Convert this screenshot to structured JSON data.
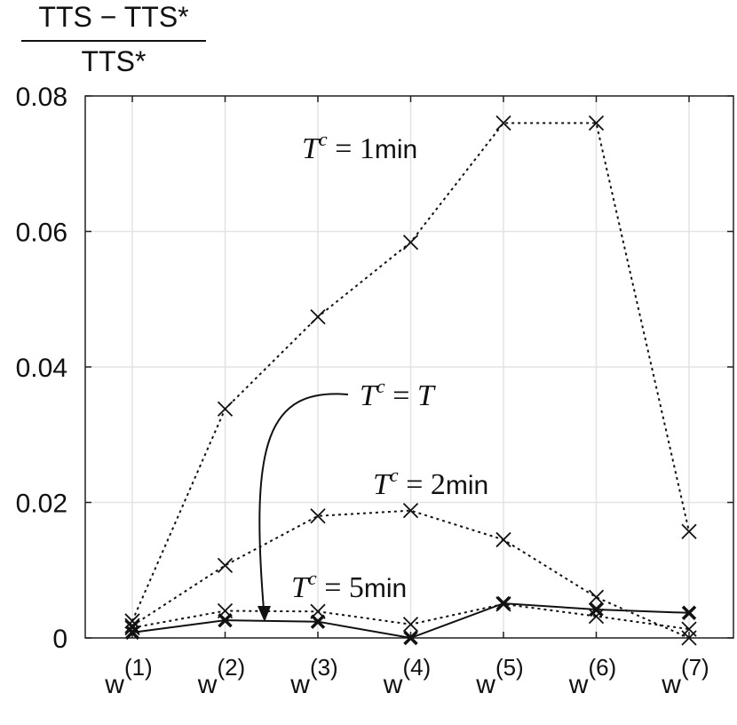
{
  "chart_data": {
    "type": "line",
    "ylabel": {
      "numerator": "TTS − TTS*",
      "denominator": "TTS*"
    },
    "categories": [
      "w(1)",
      "w(2)",
      "w(3)",
      "w(4)",
      "w(5)",
      "w(6)",
      "w(7)"
    ],
    "category_labels": [
      {
        "base": "w",
        "sup": "(1)"
      },
      {
        "base": "w",
        "sup": "(2)"
      },
      {
        "base": "w",
        "sup": "(3)"
      },
      {
        "base": "w",
        "sup": "(4)"
      },
      {
        "base": "w",
        "sup": "(5)"
      },
      {
        "base": "w",
        "sup": "(6)"
      },
      {
        "base": "w",
        "sup": "(7)"
      }
    ],
    "ylim": [
      0,
      0.08
    ],
    "yticks": [
      "0",
      "0.02",
      "0.04",
      "0.06",
      "0.08"
    ],
    "ytick_values": [
      0,
      0.02,
      0.04,
      0.06,
      0.08
    ],
    "grid": true,
    "series": [
      {
        "name": "T^c = 1min",
        "style": "dotted",
        "values": [
          0.0025,
          0.0338,
          0.0474,
          0.0584,
          0.076,
          0.076,
          0.0157
        ]
      },
      {
        "name": "T^c = 2min",
        "style": "dotted",
        "values": [
          0.0018,
          0.0107,
          0.018,
          0.0188,
          0.0145,
          0.006,
          0.0
        ]
      },
      {
        "name": "T^c = 5min",
        "style": "dotted",
        "values": [
          0.0015,
          0.004,
          0.0039,
          0.002,
          0.005,
          0.0032,
          0.0013
        ]
      },
      {
        "name": "T^c = T",
        "style": "solid",
        "values": [
          0.0008,
          0.0026,
          0.0024,
          0.0,
          0.0051,
          0.0042,
          0.0037
        ]
      }
    ],
    "annotations": [
      {
        "label": "T^c = 1min",
        "parts": [
          "T",
          "c",
          " = 1",
          "min"
        ]
      },
      {
        "label": "T^c = 2min",
        "parts": [
          "T",
          "c",
          " = 2",
          "min"
        ]
      },
      {
        "label": "T^c = 5min",
        "parts": [
          "T",
          "c",
          " = 5",
          "min"
        ]
      },
      {
        "label": "T^c = T",
        "parts": [
          "T",
          "c",
          " = ",
          "T"
        ]
      }
    ]
  }
}
